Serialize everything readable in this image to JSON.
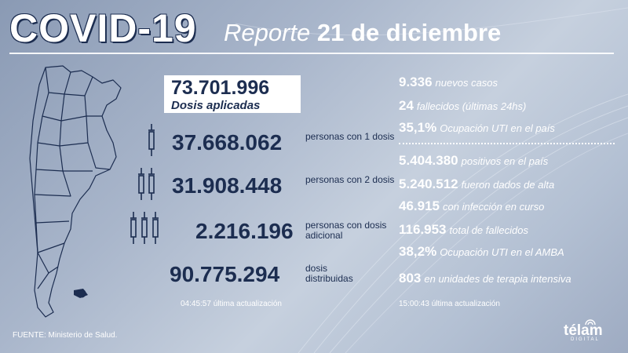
{
  "header": {
    "title": "COVID-19",
    "report_label": "Reporte",
    "date": "21 de diciembre"
  },
  "vaccination": {
    "total": {
      "value": "73.701.996",
      "label": "Dosis aplicadas"
    },
    "rows": [
      {
        "value": "37.668.062",
        "label": "personas con 1 dosis",
        "icon": "single-syringe-icon"
      },
      {
        "value": "31.908.448",
        "label": "personas con 2 dosis",
        "icon": "double-syringe-icon"
      },
      {
        "value": "2.216.196",
        "label": "personas con dosis adicional",
        "icon": "triple-syringe-icon"
      },
      {
        "value": "90.775.294",
        "label": "dosis distribuidas"
      }
    ],
    "update": {
      "time": "04:45:57",
      "label": "última actualización"
    }
  },
  "cases": {
    "daily": [
      {
        "value": "9.336",
        "label": "nuevos casos"
      },
      {
        "value": "24",
        "label": "fallecidos (últimas 24hs)"
      },
      {
        "value": "35,1%",
        "label": "Ocupación UTI en el país"
      }
    ],
    "totals": [
      {
        "value": "5.404.380",
        "label": "positivos en el país"
      },
      {
        "value": "5.240.512",
        "label": "fueron dados de alta"
      },
      {
        "value": "46.915",
        "label": "con infección en curso"
      },
      {
        "value": "116.953",
        "label": "total de fallecidos"
      },
      {
        "value": "38,2%",
        "label": "Ocupación UTI en el AMBA"
      },
      {
        "value": "803",
        "label": "en unidades de terapia intensiva"
      }
    ],
    "update": {
      "time": "15:00:43",
      "label": "última actualización"
    }
  },
  "footer": {
    "source": "FUENTE: Ministerio de Salud.",
    "logo": "télam",
    "logo_sub": "DIGITAL"
  },
  "colors": {
    "navy": "#1c2d50",
    "white": "#ffffff"
  }
}
